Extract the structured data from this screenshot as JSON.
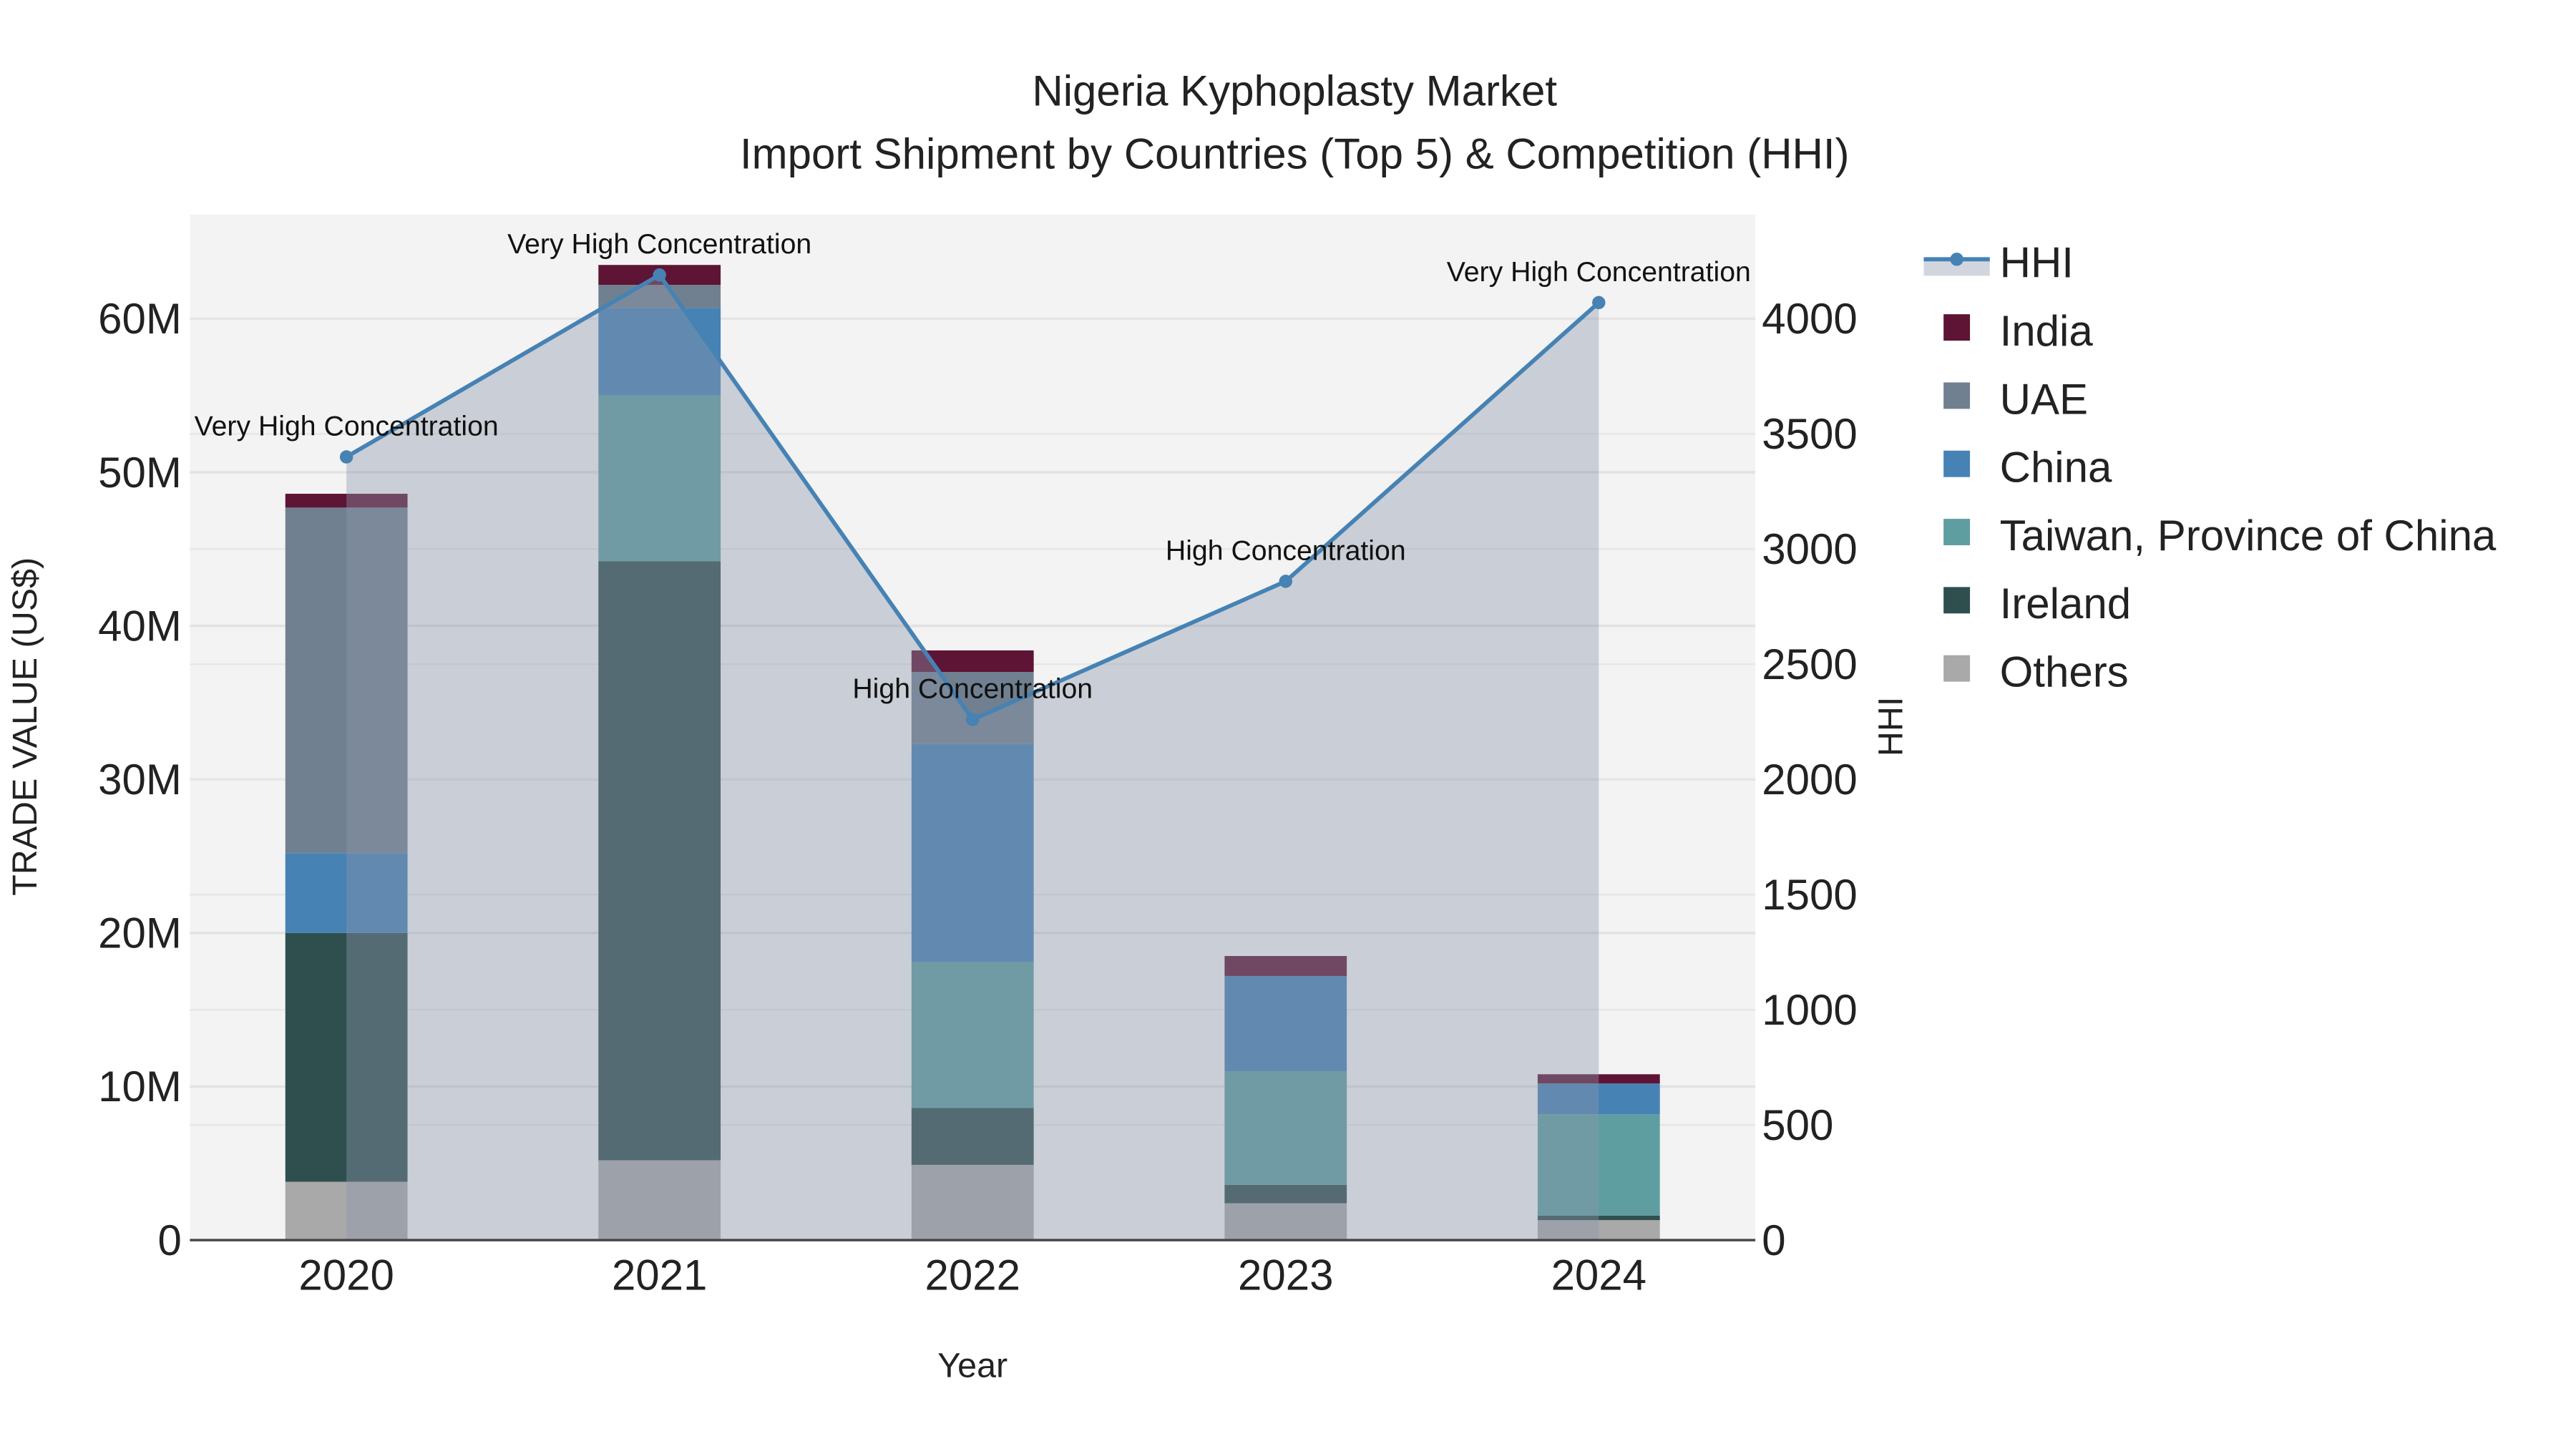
{
  "chart_data": {
    "type": "bar",
    "stacked": true,
    "title": "Nigeria Kyphoplasty Market",
    "subtitle": "Import Shipment by Countries (Top 5) & Competition (HHI)",
    "xlabel": "Year",
    "ylabel": "TRADE VALUE (US$)",
    "y2label": "HHI",
    "categories": [
      "2020",
      "2021",
      "2022",
      "2023",
      "2024"
    ],
    "ylim": [
      0,
      66
    ],
    "y_unit": "M",
    "y_ticks": [
      0,
      10,
      20,
      30,
      40,
      50,
      60
    ],
    "y_tick_labels": [
      "0",
      "10M",
      "20M",
      "30M",
      "40M",
      "50M",
      "60M"
    ],
    "y2lim": [
      0,
      4430
    ],
    "y2_ticks": [
      0,
      500,
      1000,
      1500,
      2000,
      2500,
      3000,
      3500,
      4000
    ],
    "y2_tick_labels": [
      "0",
      "500",
      "1000",
      "1500",
      "2000",
      "2500",
      "3000",
      "3500",
      "4000"
    ],
    "grid": true,
    "legend_placement": "right",
    "series": [
      {
        "name": "Others",
        "color": "#a9a9a9",
        "values": [
          3.8,
          5.2,
          4.9,
          2.4,
          1.3
        ]
      },
      {
        "name": "Ireland",
        "color": "#2f4f4f",
        "values": [
          16.2,
          39.0,
          3.7,
          1.2,
          0.3
        ]
      },
      {
        "name": "Taiwan, Province of China",
        "color": "#5f9ea0",
        "values": [
          0,
          10.8,
          9.5,
          7.4,
          6.6
        ]
      },
      {
        "name": "China",
        "color": "#4682b4",
        "values": [
          5.2,
          5.7,
          14.2,
          6.2,
          2.0
        ]
      },
      {
        "name": "UAE",
        "color": "#708090",
        "values": [
          22.5,
          1.5,
          4.7,
          0,
          0
        ]
      },
      {
        "name": "India",
        "color": "#5e1434",
        "values": [
          0.9,
          1.3,
          1.4,
          1.3,
          0.6
        ]
      }
    ],
    "hhi": {
      "name": "HHI",
      "color": "#4682b4",
      "values": [
        3400,
        4190,
        2260,
        2860,
        4070
      ],
      "annotations": [
        "Very High Concentration",
        "Very High Concentration",
        "High Concentration",
        "High Concentration",
        "Very High Concentration"
      ]
    },
    "legend_order": [
      "HHI",
      "India",
      "UAE",
      "China",
      "Taiwan, Province of China",
      "Ireland",
      "Others"
    ]
  }
}
